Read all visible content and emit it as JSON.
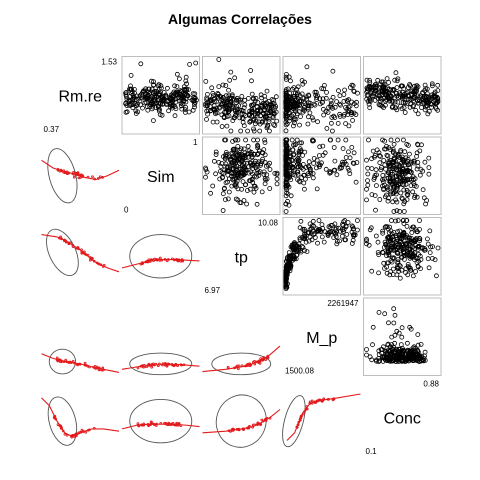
{
  "chart_data": {
    "type": "scatter",
    "title": "Algumas Correlações",
    "variables": [
      "Rm.re",
      "Sim",
      "tp",
      "M_p",
      "Conc"
    ],
    "ranges": [
      {
        "variable": "Rm.re",
        "top_label": "1.53",
        "bottom_label": "0.37"
      },
      {
        "variable": "Sim",
        "top_label": "1",
        "bottom_label": "0"
      },
      {
        "variable": "tp",
        "top_label": "10.08",
        "bottom_label": "6.97"
      },
      {
        "variable": "M_p",
        "top_label": "2261947",
        "bottom_label": "1500.08"
      },
      {
        "variable": "Conc",
        "top_label": "0.88",
        "bottom_label": "0.1"
      }
    ],
    "upper_panels": "scatterplots",
    "lower_panels": "correlation ellipses with loess smoothers",
    "grid": false,
    "legend": "none"
  }
}
